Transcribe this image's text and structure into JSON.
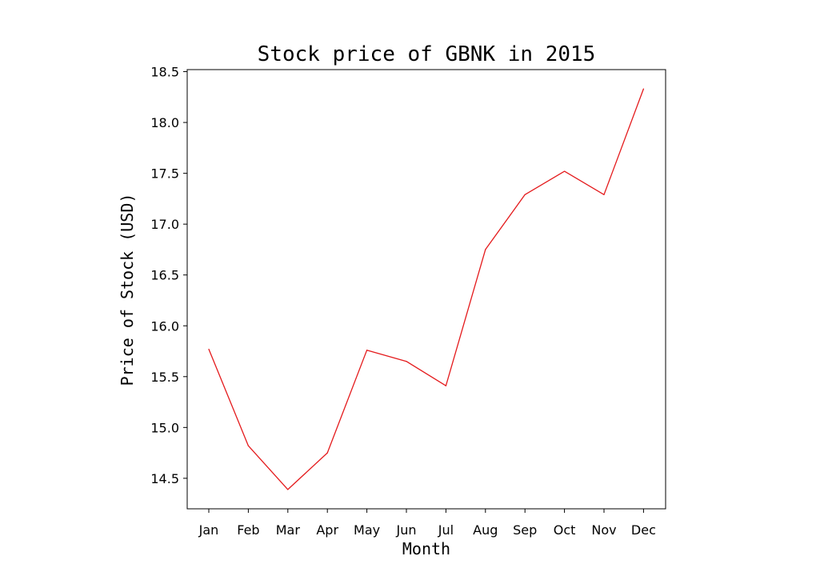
{
  "chart_data": {
    "type": "line",
    "title": "Stock price of GBNK in 2015",
    "xlabel": "Month",
    "ylabel": "Price of Stock (USD)",
    "categories": [
      "Jan",
      "Feb",
      "Mar",
      "Apr",
      "May",
      "Jun",
      "Jul",
      "Aug",
      "Sep",
      "Oct",
      "Nov",
      "Dec"
    ],
    "series": [
      {
        "values": [
          15.77,
          14.82,
          14.39,
          14.75,
          15.76,
          15.65,
          15.41,
          16.75,
          17.29,
          17.52,
          17.29,
          18.33
        ],
        "color": "#e41a1c"
      }
    ],
    "yticks": [
      "14.5",
      "15.0",
      "15.5",
      "16.0",
      "16.5",
      "17.0",
      "17.5",
      "18.0",
      "18.5"
    ],
    "ylim": [
      14.2,
      18.52
    ],
    "grid": false,
    "legend": "none"
  }
}
